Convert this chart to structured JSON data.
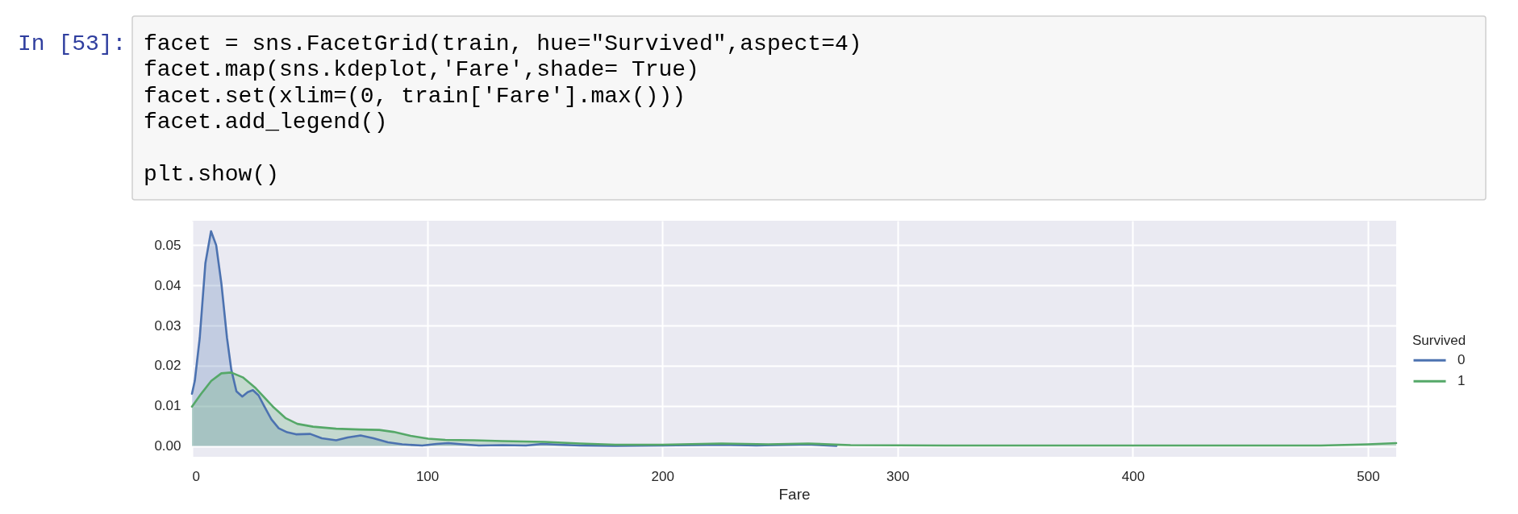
{
  "chart_data": {
    "type": "area",
    "xlabel": "Fare",
    "legend_title": "Survived",
    "legend": "right",
    "grid": true,
    "annotations": [
      "In [53]:",
      "facet = sns.FacetGrid(train, hue=\"Survived\",aspect=4)\nfacet.map(sns.kdeplot,'Fare',shade= True)\nfacet.set(xlim=(0, train['Fare'].max()))\nfacet.add_legend()\n\nplt.show()"
    ],
    "xlim": [
      0,
      512
    ],
    "xticks": [
      0,
      100,
      200,
      300,
      400,
      500
    ],
    "ylim": [
      -0.0027,
      0.0561
    ],
    "yticks": [
      {
        "value": 0,
        "label": "0.00"
      },
      0.01,
      0.02,
      0.03,
      0.04,
      0.05
    ],
    "series": [
      {
        "name": "0",
        "color": "#4c72b0",
        "x": [
          0,
          1.2,
          3.3,
          5.7,
          8.1,
          10.3,
          12.5,
          14.9,
          16.7,
          18.9,
          21.4,
          23.7,
          25.9,
          28.3,
          30.8,
          33.8,
          36.9,
          40.5,
          44.2,
          50.3,
          55.2,
          61.3,
          66.2,
          71.7,
          77.2,
          83.3,
          89.4,
          97.9,
          104,
          109,
          115,
          122,
          132,
          142,
          149,
          156,
          165,
          180,
          200,
          225,
          240,
          262,
          274
        ],
        "values": [
          0.013,
          0.0162,
          0.0269,
          0.0455,
          0.0535,
          0.05,
          0.0405,
          0.0269,
          0.0191,
          0.0136,
          0.0123,
          0.0134,
          0.0139,
          0.0126,
          0.0098,
          0.0066,
          0.0044,
          0.0034,
          0.0029,
          0.003,
          0.0019,
          0.0014,
          0.0021,
          0.0026,
          0.0019,
          0.0009,
          0.0004,
          0.0001,
          0.0005,
          0.0007,
          0.0004,
          0.0001,
          0.0002,
          0.0001,
          0.0005,
          0.0003,
          0.0001,
          0,
          0.0001,
          0.0003,
          0.0001,
          0.0004,
          0
        ]
      },
      {
        "name": "1",
        "color": "#55a868",
        "x": [
          0,
          3.9,
          8.2,
          12.5,
          16.7,
          21.6,
          27.1,
          34.4,
          39.9,
          44.8,
          51.5,
          61.3,
          71.1,
          79.6,
          85.7,
          93,
          100.4,
          107.7,
          119.9,
          132,
          150,
          165,
          180,
          200,
          225,
          245,
          262,
          280,
          320,
          400,
          480,
          500,
          512
        ],
        "values": [
          0.0098,
          0.013,
          0.0162,
          0.0181,
          0.0183,
          0.0171,
          0.0144,
          0.0098,
          0.0069,
          0.0055,
          0.0048,
          0.0043,
          0.0041,
          0.004,
          0.0035,
          0.0025,
          0.0018,
          0.0015,
          0.0014,
          0.0012,
          0.001,
          0.0006,
          0.0003,
          0.0003,
          0.0006,
          0.0004,
          0.0006,
          0.0002,
          0.0001,
          0.0001,
          0.0001,
          0.0004,
          0.0007
        ]
      }
    ]
  }
}
